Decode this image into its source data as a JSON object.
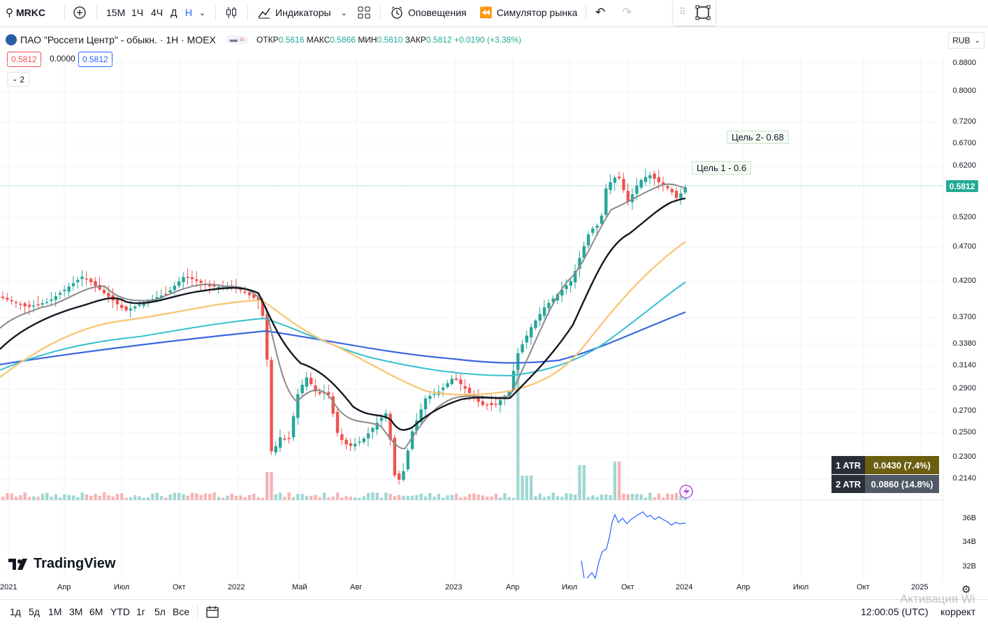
{
  "toolbar": {
    "symbol": "MRKC",
    "intervals": [
      "15М",
      "1Ч",
      "4Ч",
      "Д",
      "Н"
    ],
    "indicators_label": "Индикаторы",
    "alerts_label": "Оповещения",
    "replay_label": "Симулятор рынка"
  },
  "legend": {
    "title": "ПАО \"Россети Центр\" - обыкн. · 1Н · MOEX",
    "open_label": "ОТКР",
    "open": "0.5616",
    "high_label": "МАКС",
    "high": "0.5866",
    "low_label": "МИН",
    "low": "0.5610",
    "close_label": "ЗАКР",
    "close": "0.5812",
    "change": "+0.0190 (+3.38%)",
    "sell_price": "0.5812",
    "spread": "0.0000",
    "buy_price": "0.5812",
    "collapsed_count": "2"
  },
  "currency": "RUB",
  "current_price": "0.5812",
  "price_axis": [
    "0.8800",
    "0.8000",
    "0.7200",
    "0.6700",
    "0.6200",
    "0.5200",
    "0.4700",
    "0.4200",
    "0.3700",
    "0.3380",
    "0.3140",
    "0.2900",
    "0.2700",
    "0.2500",
    "0.2300",
    "0.2140"
  ],
  "volume_axis": [
    "36B",
    "34B",
    "32B"
  ],
  "time_axis": [
    "2021",
    "Апр",
    "Июл",
    "Окт",
    "2022",
    "Май",
    "Авг",
    "2023",
    "Апр",
    "Июл",
    "Окт",
    "2024",
    "Апр",
    "Июл",
    "Окт",
    "2025"
  ],
  "targets": {
    "target2": "Цель 2- 0.68",
    "target1": "Цель 1 - 0.6"
  },
  "atr": [
    {
      "key": "1 ATR",
      "value": "0.0430 (7.4%)",
      "color": "#6b5e0e"
    },
    {
      "key": "2 ATR",
      "value": "0.0860 (14.8%)",
      "color": "#4f5a66"
    }
  ],
  "branding": "TradingView",
  "bottombar": {
    "ranges": [
      "1д",
      "5д",
      "1М",
      "3М",
      "6М",
      "YTD",
      "1г",
      "5л",
      "Все"
    ],
    "clock": "12:00:05 (UTC)",
    "adjust_label": "коррект",
    "watermark": "Активация Wi"
  },
  "colors": {
    "up": "#26a69a",
    "down": "#ef5350",
    "ma_black": "#131722",
    "ma_gray": "#8a8a8a",
    "ma_orange": "#f9c77a",
    "ma_cyan": "#36c0cf",
    "ma_blue": "#3b67e0",
    "accent": "#2962ff"
  },
  "chart_data": {
    "type": "candlestick",
    "title": "ПАО \"Россети Центр\" - обыкн. · 1Н · MOEX",
    "close_path": [
      {
        "x": "2021-01",
        "y": 0.4
      },
      {
        "x": "2021-04",
        "y": 0.41
      },
      {
        "x": "2021-07",
        "y": 0.39
      },
      {
        "x": "2021-10",
        "y": 0.43
      },
      {
        "x": "2022-01",
        "y": 0.4
      },
      {
        "x": "2022-03",
        "y": 0.23
      },
      {
        "x": "2022-05",
        "y": 0.3
      },
      {
        "x": "2022-08",
        "y": 0.24
      },
      {
        "x": "2022-11",
        "y": 0.21
      },
      {
        "x": "2022-12",
        "y": 0.28
      },
      {
        "x": "2023-02",
        "y": 0.3
      },
      {
        "x": "2023-04",
        "y": 0.32
      },
      {
        "x": "2023-06",
        "y": 0.37
      },
      {
        "x": "2023-08",
        "y": 0.55
      },
      {
        "x": "2023-09",
        "y": 0.6
      },
      {
        "x": "2023-11",
        "y": 0.59
      },
      {
        "x": "2023-12",
        "y": 0.5812
      }
    ],
    "ylim": [
      0.2,
      0.9
    ],
    "scale": "log"
  }
}
